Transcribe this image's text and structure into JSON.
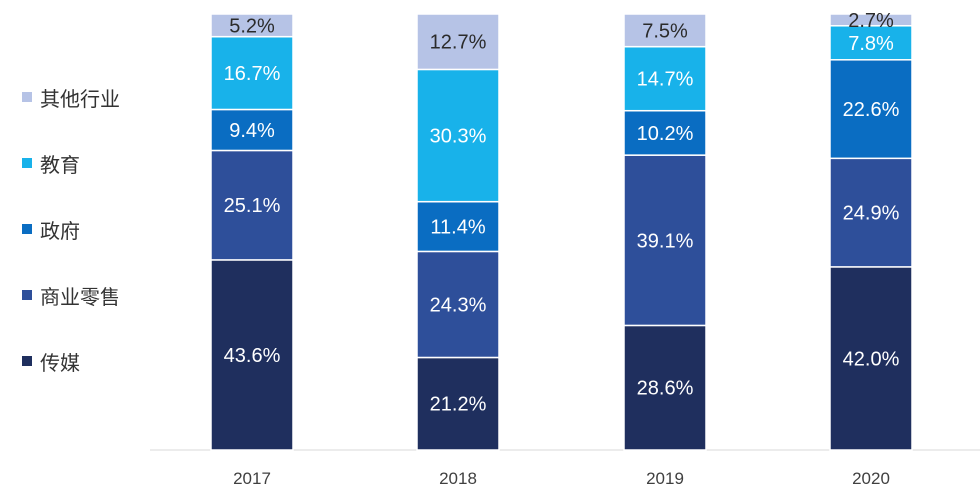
{
  "chart_data": {
    "type": "bar",
    "stacked": true,
    "categories": [
      "2017",
      "2018",
      "2019",
      "2020"
    ],
    "series": [
      {
        "name": "传媒",
        "color": "#1F2F5E",
        "values": [
          43.6,
          21.2,
          28.6,
          42.0
        ],
        "labels": [
          "43.6%",
          "21.2%",
          "28.6%",
          "42.0%"
        ]
      },
      {
        "name": "商业零售",
        "color": "#2E4F9A",
        "values": [
          25.1,
          24.3,
          39.1,
          24.9
        ],
        "labels": [
          "25.1%",
          "24.3%",
          "39.1%",
          "24.9%"
        ]
      },
      {
        "name": "政府",
        "color": "#0A6DC2",
        "values": [
          9.4,
          11.4,
          10.2,
          22.6
        ],
        "labels": [
          "9.4%",
          "11.4%",
          "10.2%",
          "22.6%"
        ]
      },
      {
        "name": "教育",
        "color": "#18B2EA",
        "values": [
          16.7,
          30.3,
          14.7,
          7.8
        ],
        "labels": [
          "16.7%",
          "30.3%",
          "14.7%",
          "7.8%"
        ]
      },
      {
        "name": "其他行业",
        "color": "#B6C3E6",
        "values": [
          5.2,
          12.7,
          7.5,
          2.7
        ],
        "labels": [
          "5.2%",
          "12.7%",
          "7.5%",
          "2.7%"
        ]
      }
    ],
    "ylim": [
      0,
      100
    ],
    "legend_position": "left",
    "grid": false
  }
}
